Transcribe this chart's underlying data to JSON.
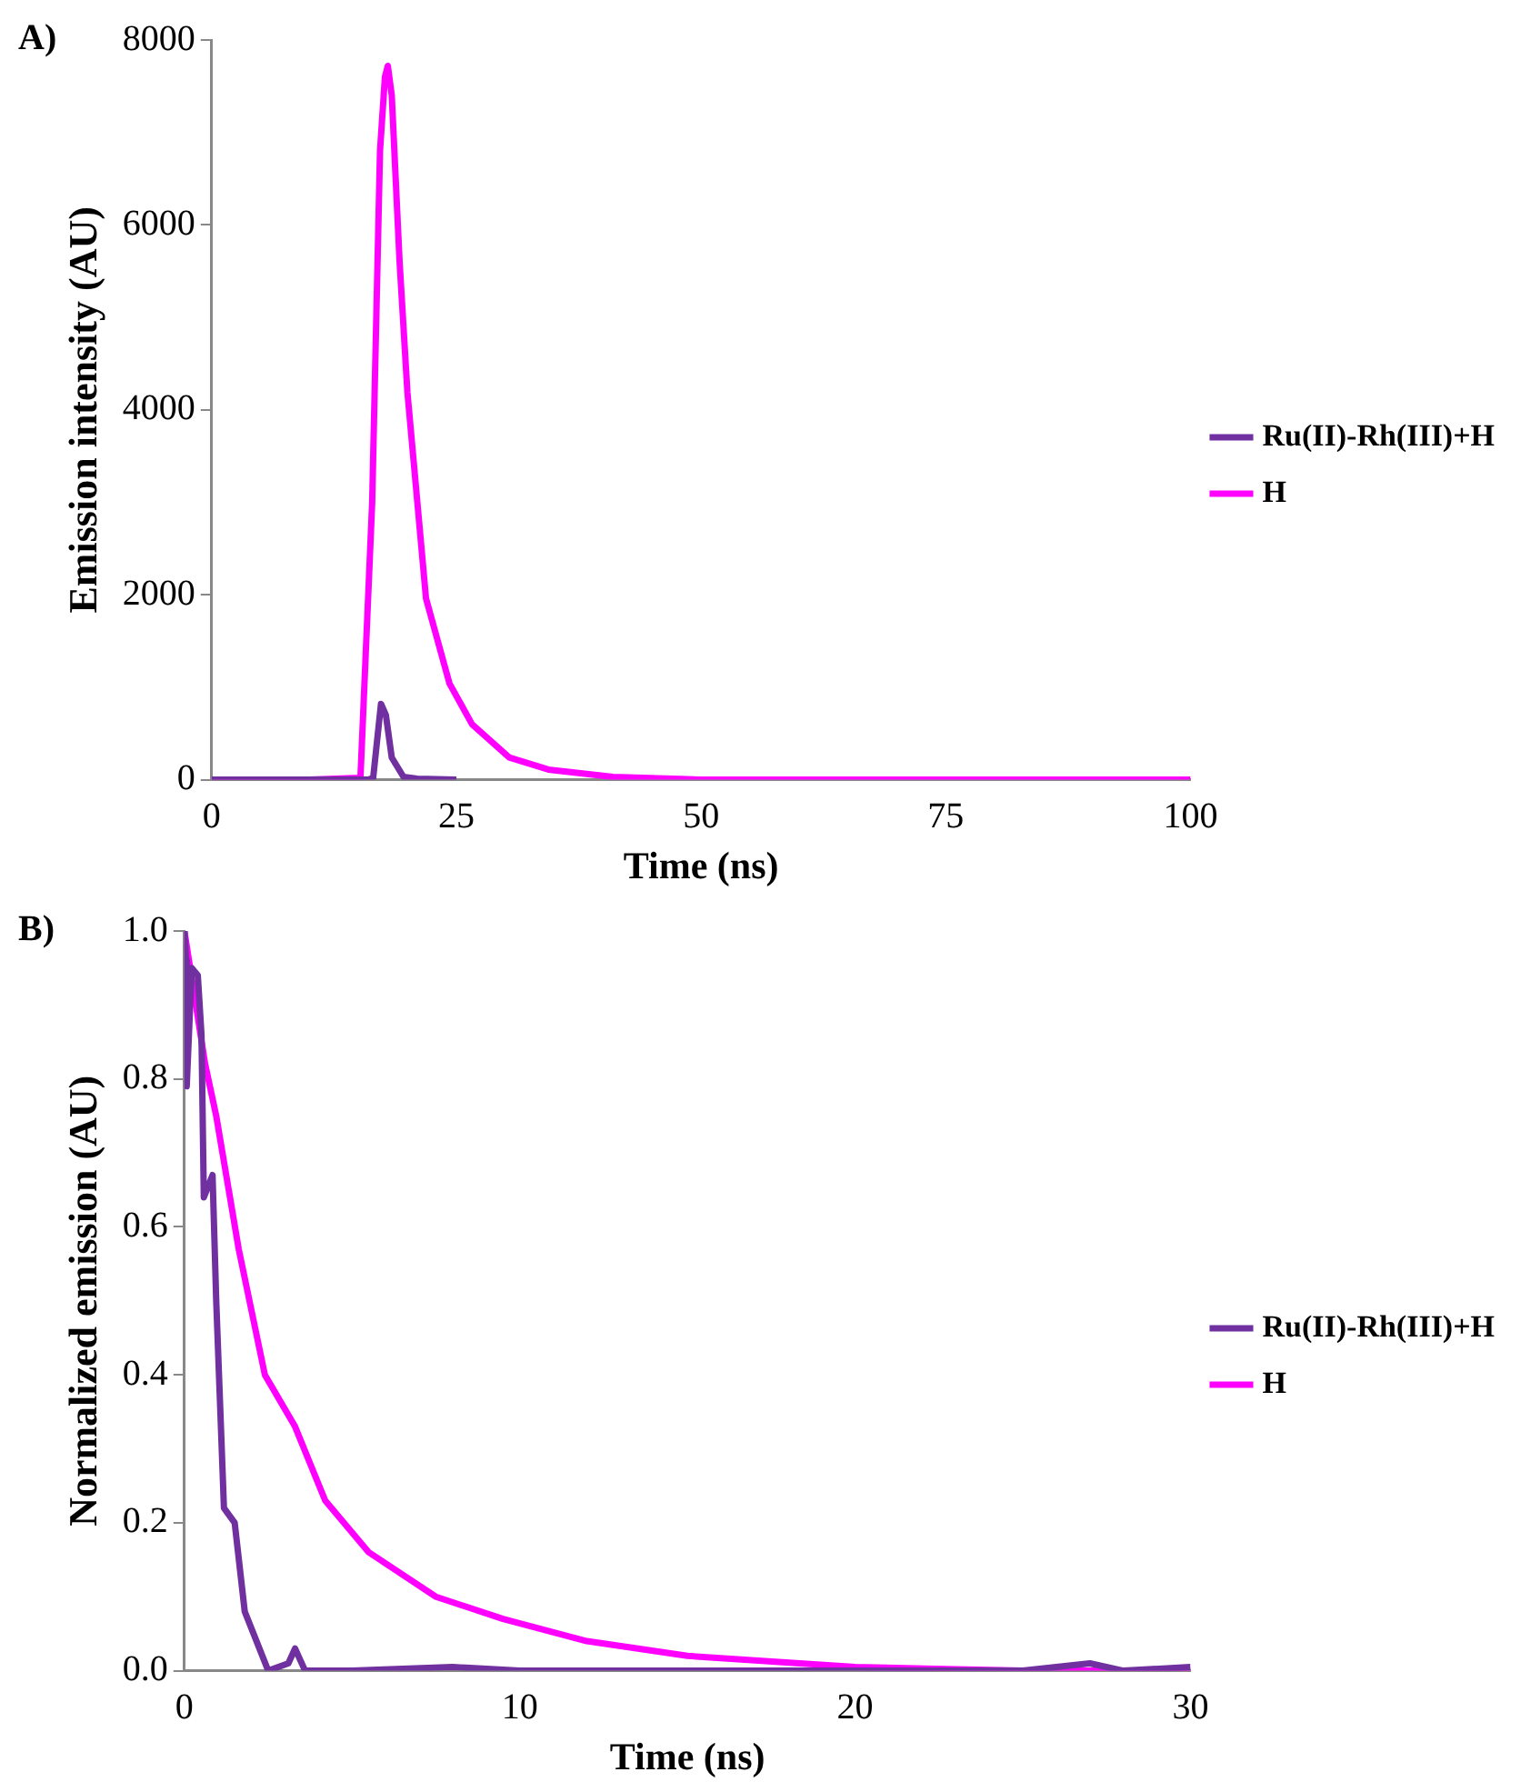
{
  "chart_data": [
    {
      "type": "line",
      "annotations": [
        "A)"
      ],
      "xlabel": "Time (ns)",
      "ylabel": "Emission intensity (AU)",
      "xlim": [
        0,
        100
      ],
      "ylim": [
        0,
        8000
      ],
      "xticks": [
        0,
        25,
        50,
        75,
        100
      ],
      "yticks": [
        0,
        2000,
        4000,
        6000,
        8000
      ],
      "legend": "right",
      "marker": "none",
      "line_style": "solid",
      "series": [
        {
          "name": "Ru(II)-Rh(III)+H",
          "color": "#7030a0",
          "x": [
            0,
            10,
            16,
            16.5,
            17.3,
            17.8,
            18.4,
            19.6,
            21,
            25
          ],
          "values": [
            0,
            0,
            0,
            20,
            820,
            700,
            240,
            30,
            10,
            0
          ]
        },
        {
          "name": "H",
          "color": "#ff00ff",
          "x": [
            0,
            10,
            15.2,
            16.4,
            17.2,
            17.7,
            18,
            18.4,
            19.2,
            20,
            21.9,
            24.3,
            26.6,
            30.4,
            34.4,
            41,
            50,
            60,
            80,
            100
          ],
          "values": [
            0,
            0,
            20,
            3000,
            6800,
            7600,
            7720,
            7400,
            5600,
            4190,
            1960,
            1040,
            600,
            240,
            110,
            30,
            0,
            0,
            0,
            0
          ]
        }
      ]
    },
    {
      "type": "line",
      "annotations": [
        "B)"
      ],
      "xlabel": "Time (ns)",
      "ylabel": "Normalized emission (AU)",
      "xlim": [
        0,
        30
      ],
      "ylim": [
        0,
        1
      ],
      "xticks": [
        0,
        10,
        20,
        30
      ],
      "yticks": [
        {
          "value": 0,
          "label": "0.0"
        },
        {
          "value": 0.2,
          "label": "0.2"
        },
        {
          "value": 0.4,
          "label": "0.4"
        },
        {
          "value": 0.6,
          "label": "0.6"
        },
        {
          "value": 0.8,
          "label": "0.8"
        },
        {
          "value": 1,
          "label": "1.0"
        }
      ],
      "legend": "right",
      "marker": "none",
      "line_style": "solid",
      "series": [
        {
          "name": "Ru(II)-Rh(III)+H",
          "color": "#7030a0",
          "x": [
            0,
            0.05,
            0.07,
            0.22,
            0.4,
            0.51,
            0.58,
            0.84,
            0.95,
            1.18,
            1.5,
            1.8,
            2.5,
            3.1,
            3.3,
            3.6,
            5,
            8,
            10,
            15,
            20,
            25,
            27,
            28,
            30
          ],
          "values": [
            1,
            0.96,
            0.79,
            0.95,
            0.94,
            0.86,
            0.64,
            0.67,
            0.5,
            0.22,
            0.2,
            0.08,
            0,
            0.01,
            0.03,
            0,
            0,
            0.005,
            0,
            0,
            0,
            0,
            0.01,
            0,
            0.005
          ]
        },
        {
          "name": "H",
          "color": "#ff00ff",
          "x": [
            0,
            0.62,
            0.95,
            1.62,
            2.4,
            3.3,
            4.2,
            5.5,
            7.5,
            9.5,
            12,
            15,
            20,
            25,
            30
          ],
          "values": [
            1,
            0.82,
            0.75,
            0.57,
            0.4,
            0.33,
            0.23,
            0.16,
            0.1,
            0.07,
            0.04,
            0.02,
            0.005,
            0,
            0
          ]
        }
      ]
    }
  ]
}
